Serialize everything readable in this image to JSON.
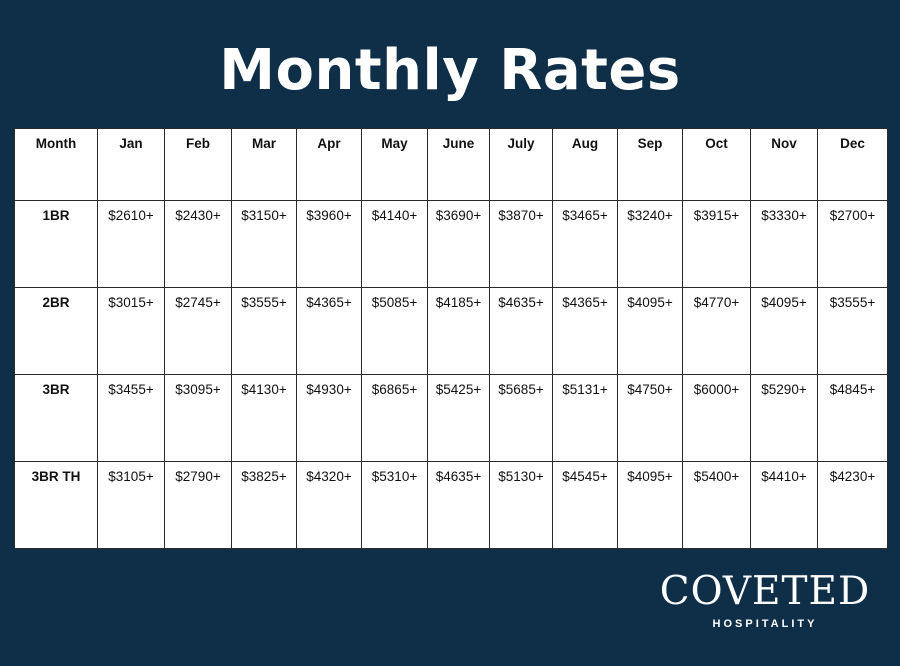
{
  "title": "Monthly Rates",
  "table": {
    "header_label": "Month",
    "months": [
      "Jan",
      "Feb",
      "Mar",
      "Apr",
      "May",
      "June",
      "July",
      "Aug",
      "Sep",
      "Oct",
      "Nov",
      "Dec"
    ],
    "rows": [
      {
        "label": "1BR",
        "values": [
          "$2610+",
          "$2430+",
          "$3150+",
          "$3960+",
          "$4140+",
          "$3690+",
          "$3870+",
          "$3465+",
          "$3240+",
          "$3915+",
          "$3330+",
          "$2700+"
        ]
      },
      {
        "label": "2BR",
        "values": [
          "$3015+",
          "$2745+",
          "$3555+",
          "$4365+",
          "$5085+",
          "$4185+",
          "$4635+",
          "$4365+",
          "$4095+",
          "$4770+",
          "$4095+",
          "$3555+"
        ]
      },
      {
        "label": "3BR",
        "values": [
          "$3455+",
          "$3095+",
          "$4130+",
          "$4930+",
          "$6865+",
          "$5425+",
          "$5685+",
          "$5131+",
          "$4750+",
          "$6000+",
          "$5290+",
          "$4845+"
        ]
      },
      {
        "label": "3BR TH",
        "values": [
          "$3105+",
          "$2790+",
          "$3825+",
          "$4320+",
          "$5310+",
          "$4635+",
          "$5130+",
          "$4545+",
          "$4095+",
          "$5400+",
          "$4410+",
          "$4230+"
        ]
      }
    ]
  },
  "logo": {
    "name": "COVETED",
    "tagline": "HOSPITALITY"
  },
  "colors": {
    "background": "#0f2f48",
    "table_background": "#ffffff",
    "text": "#111111"
  }
}
